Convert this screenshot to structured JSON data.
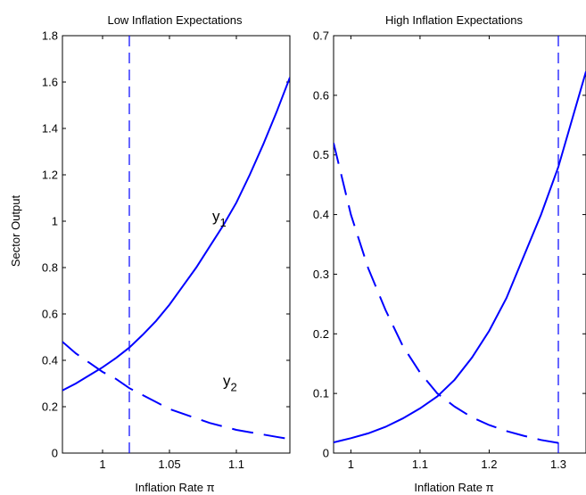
{
  "colors": {
    "line": "#0000ff",
    "axis": "#000000",
    "background": "#ffffff"
  },
  "chart_data": [
    {
      "type": "line",
      "title": "Low Inflation Expectations",
      "xlabel": "Inflation Rate π",
      "ylabel": "Sector Output",
      "xlim": [
        0.97,
        1.14
      ],
      "ylim": [
        0,
        1.8
      ],
      "xticks": [
        "1",
        "1.05",
        "1.1"
      ],
      "yticks": [
        "0",
        "0.2",
        "0.4",
        "0.6",
        "0.8",
        "1",
        "1.2",
        "1.4",
        "1.6",
        "1.8"
      ],
      "vline": {
        "x": 1.02,
        "style": "dashed"
      },
      "series": [
        {
          "name": "y1",
          "style": "solid",
          "x": [
            0.97,
            0.98,
            0.99,
            1.0,
            1.01,
            1.02,
            1.03,
            1.04,
            1.05,
            1.06,
            1.07,
            1.08,
            1.09,
            1.1,
            1.11,
            1.12,
            1.13,
            1.14
          ],
          "y": [
            0.27,
            0.3,
            0.335,
            0.37,
            0.41,
            0.455,
            0.51,
            0.57,
            0.64,
            0.72,
            0.8,
            0.89,
            0.98,
            1.08,
            1.2,
            1.33,
            1.47,
            1.62
          ]
        },
        {
          "name": "y2",
          "style": "dashed",
          "x": [
            0.97,
            0.98,
            0.99,
            1.0,
            1.01,
            1.02,
            1.03,
            1.04,
            1.05,
            1.06,
            1.07,
            1.08,
            1.09,
            1.1,
            1.11,
            1.12,
            1.13,
            1.14
          ],
          "y": [
            0.48,
            0.43,
            0.39,
            0.35,
            0.32,
            0.28,
            0.25,
            0.22,
            0.19,
            0.17,
            0.15,
            0.13,
            0.115,
            0.1,
            0.09,
            0.08,
            0.07,
            0.06
          ]
        }
      ],
      "annotations": [
        {
          "base": "y",
          "sub": "1",
          "x": 1.082,
          "y": 1.0
        },
        {
          "base": "y",
          "sub": "2",
          "x": 1.09,
          "y": 0.29
        }
      ]
    },
    {
      "type": "line",
      "title": "High Inflation Expectations",
      "xlabel": "Inflation Rate π",
      "ylabel": "",
      "xlim": [
        0.975,
        1.34
      ],
      "ylim": [
        0,
        0.7
      ],
      "xticks": [
        "1",
        "1.1",
        "1.2",
        "1.3"
      ],
      "yticks": [
        "0",
        "0.1",
        "0.2",
        "0.3",
        "0.4",
        "0.5",
        "0.6",
        "0.7"
      ],
      "vline": {
        "x": 1.3,
        "style": "dashed"
      },
      "series": [
        {
          "name": "y1",
          "style": "solid",
          "x": [
            0.975,
            1.0,
            1.025,
            1.05,
            1.075,
            1.1,
            1.125,
            1.15,
            1.175,
            1.2,
            1.225,
            1.25,
            1.275,
            1.3,
            1.32,
            1.34
          ],
          "y": [
            0.018,
            0.025,
            0.033,
            0.044,
            0.058,
            0.075,
            0.095,
            0.123,
            0.16,
            0.205,
            0.26,
            0.33,
            0.4,
            0.48,
            0.56,
            0.64
          ]
        },
        {
          "name": "y2",
          "style": "dashed",
          "x": [
            0.975,
            1.0,
            1.025,
            1.05,
            1.075,
            1.1,
            1.125,
            1.15,
            1.175,
            1.2,
            1.225,
            1.25,
            1.275,
            1.3
          ],
          "y": [
            0.52,
            0.4,
            0.31,
            0.24,
            0.18,
            0.135,
            0.1,
            0.078,
            0.06,
            0.047,
            0.037,
            0.029,
            0.022,
            0.017
          ]
        }
      ],
      "annotations": []
    }
  ]
}
